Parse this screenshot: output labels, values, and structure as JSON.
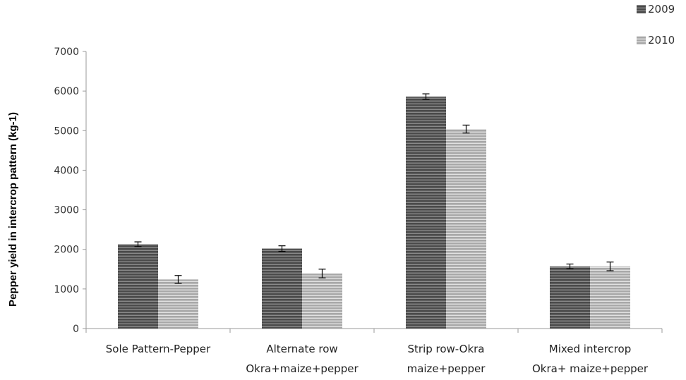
{
  "chart_data": {
    "type": "bar",
    "title": "",
    "xlabel": "",
    "ylabel": "Pepper yield in intercrop pattern (kg-1)",
    "ylim": [
      0,
      7000
    ],
    "yticks": [
      0,
      1000,
      2000,
      3000,
      4000,
      5000,
      6000,
      7000
    ],
    "grid": false,
    "legend_position": "top-right",
    "categories": [
      [
        "Sole Pattern-Pepper"
      ],
      [
        "Alternate row",
        "Okra+maize+pepper"
      ],
      [
        "Strip row-Okra",
        "maize+pepper"
      ],
      [
        "Mixed intercrop",
        "Okra+ maize+pepper"
      ]
    ],
    "series": [
      {
        "name": "2009",
        "color": "#5a5a5a",
        "values": [
          2130,
          2020,
          5860,
          1570
        ],
        "errors": [
          60,
          70,
          70,
          60
        ]
      },
      {
        "name": "2010",
        "color": "#b4b4b4",
        "values": [
          1240,
          1390,
          5040,
          1570
        ],
        "errors": [
          100,
          110,
          100,
          110
        ]
      }
    ]
  }
}
